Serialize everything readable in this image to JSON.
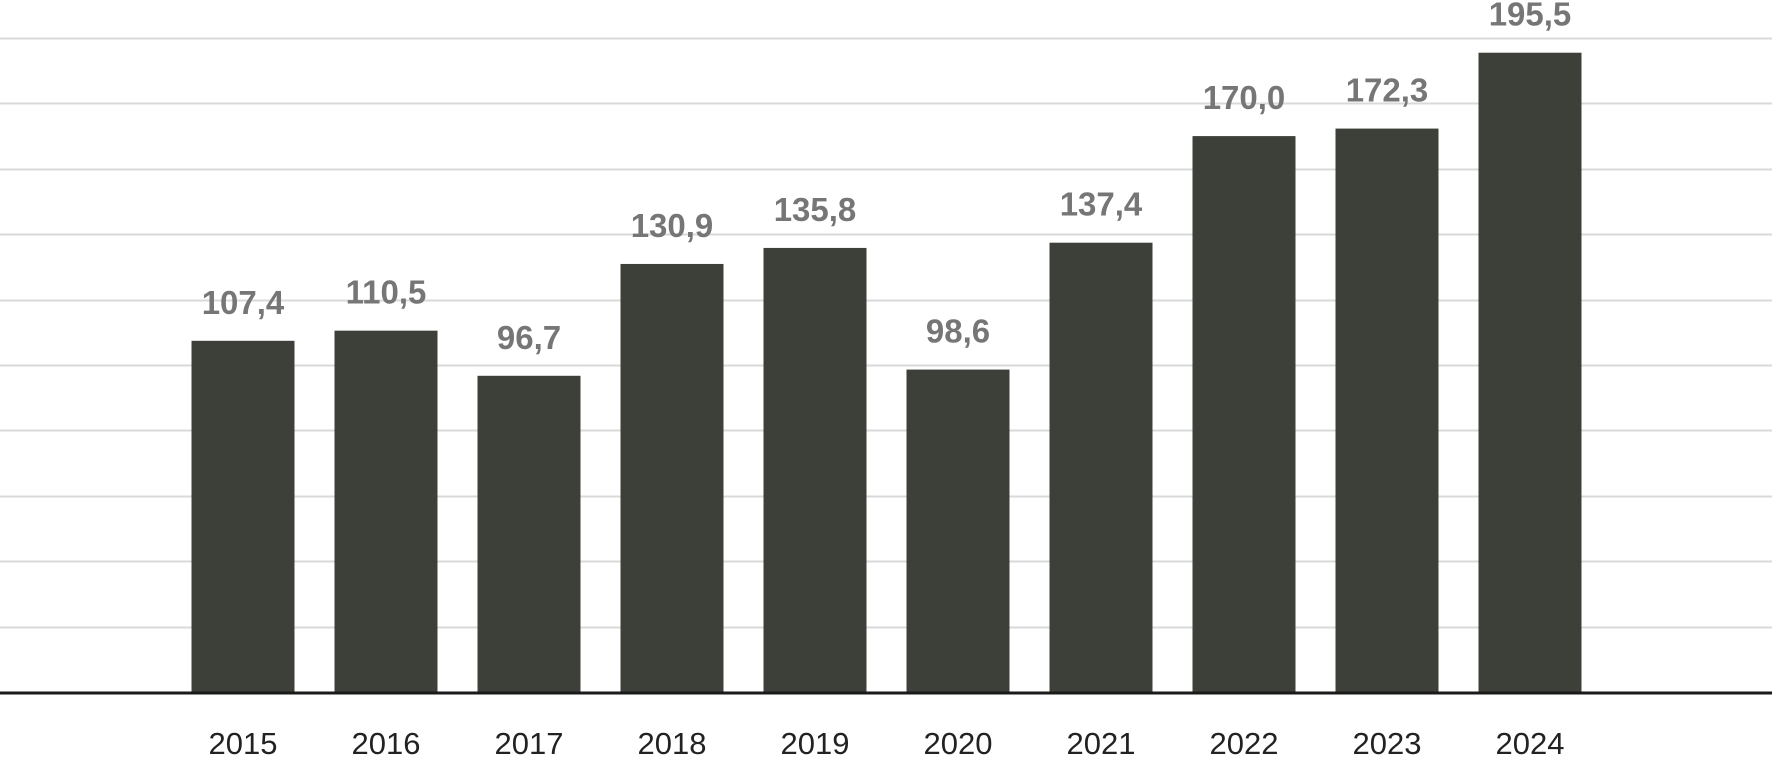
{
  "chart_data": {
    "type": "bar",
    "title": "",
    "xlabel": "",
    "ylabel": "",
    "categories": [
      "2015",
      "2016",
      "2017",
      "2018",
      "2019",
      "2020",
      "2021",
      "2022",
      "2023",
      "2024"
    ],
    "values": [
      107.4,
      110.5,
      96.7,
      130.9,
      135.8,
      98.6,
      137.4,
      170.0,
      172.3,
      195.5
    ],
    "value_labels": [
      "107,4",
      "110,5",
      "96,7",
      "130,9",
      "135,8",
      "98,6",
      "137,4",
      "170,0",
      "172,3",
      "195,5"
    ],
    "ylim": [
      0,
      200
    ],
    "grid": true,
    "gridline_step": 20,
    "y_axis_labels_shown": false,
    "legend": "none",
    "colors": {
      "bar": "#3c4039",
      "value_label": "#767676",
      "tick_label": "#222222",
      "gridline": "#d9d9d9",
      "baseline": "#1a1a1a"
    }
  }
}
